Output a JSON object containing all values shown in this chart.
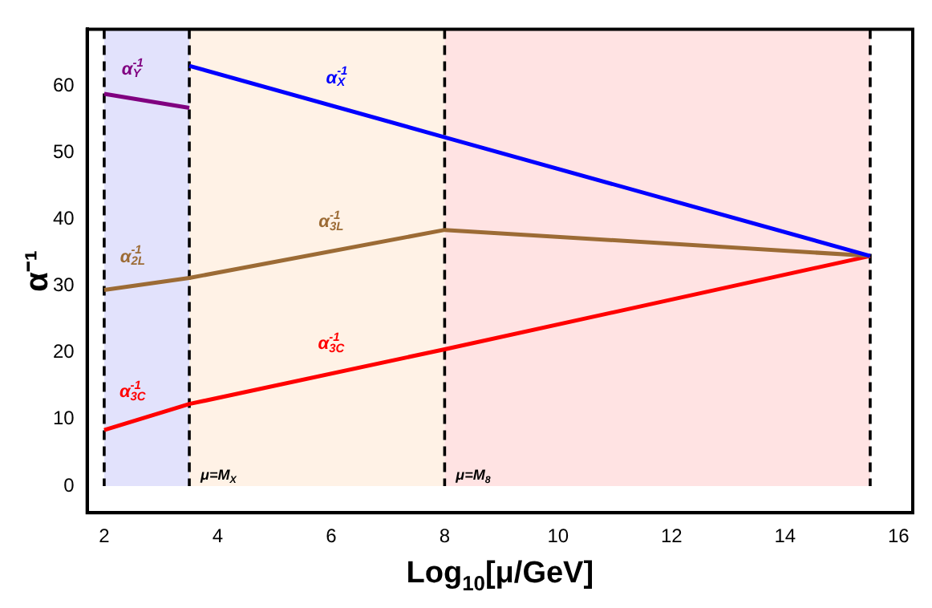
{
  "chart_data": {
    "type": "line",
    "xlabel": "Log$_{10}$[μ/GeV]",
    "ylabel": "α⁻¹",
    "xlim": [
      1.7,
      16.25
    ],
    "xticks": [
      2,
      4,
      6,
      8,
      10,
      12,
      14,
      16
    ],
    "ylim": [
      -4,
      68.5
    ],
    "yticks": [
      0,
      10,
      20,
      30,
      40,
      50,
      60
    ],
    "grid": false,
    "legend": false,
    "marker": "none",
    "line_style": "solid",
    "series": [
      {
        "color": "#800080",
        "x": [
          2,
          3.5
        ],
        "values": [
          58.8,
          56.7
        ]
      },
      {
        "color": "#0000ff",
        "x": [
          3.5,
          8,
          15.5
        ],
        "values": [
          63,
          52.3,
          34.5
        ]
      },
      {
        "color": "#9c6b35",
        "x": [
          2,
          3.5,
          8,
          15.5
        ],
        "values": [
          29.4,
          31.2,
          38.4,
          34.5
        ]
      },
      {
        "color": "#ff0000",
        "x": [
          2,
          3.5,
          8,
          15.5
        ],
        "values": [
          8.4,
          12.3,
          20.5,
          34.5
        ]
      }
    ],
    "annotations": [
      {
        "text": "α$^{-1}$$_{Y}$",
        "x": 2.5,
        "y": 58.1
      },
      {
        "text": "α$^{-1}$$_{X}$",
        "x": 6.1,
        "y": 56.8
      },
      {
        "text": "α$^{-1}$$_{2L}$",
        "x": 2.5,
        "y": 30
      },
      {
        "text": "α$^{-1}$$_{3L}$",
        "x": 6,
        "y": 35.2
      },
      {
        "text": "α$^{-1}$$_{3C}$",
        "x": 2.5,
        "y": 9.7
      },
      {
        "text": "α$^{-1}$$_{3C}$",
        "x": 6,
        "y": 16.9
      }
    ],
    "bands": [
      {
        "axis": "x",
        "from": 2,
        "to": 3.5,
        "color": "#e2e2fc"
      },
      {
        "axis": "x",
        "from": 3.5,
        "to": 8,
        "color": "#fff2e6"
      },
      {
        "axis": "x",
        "from": 8,
        "to": 15.5,
        "color": "#ffe3e3"
      }
    ],
    "ref_lines": [
      {
        "axis": "x",
        "value": 2,
        "line_style": "dashed"
      },
      {
        "axis": "x",
        "value": 3.5,
        "label": "μ=M$_{X}$",
        "line_style": "dashed"
      },
      {
        "axis": "x",
        "value": 8,
        "label": "μ=M$_{8}$",
        "line_style": "dashed"
      },
      {
        "axis": "x",
        "value": 15.5,
        "line_style": "dashed"
      }
    ]
  }
}
